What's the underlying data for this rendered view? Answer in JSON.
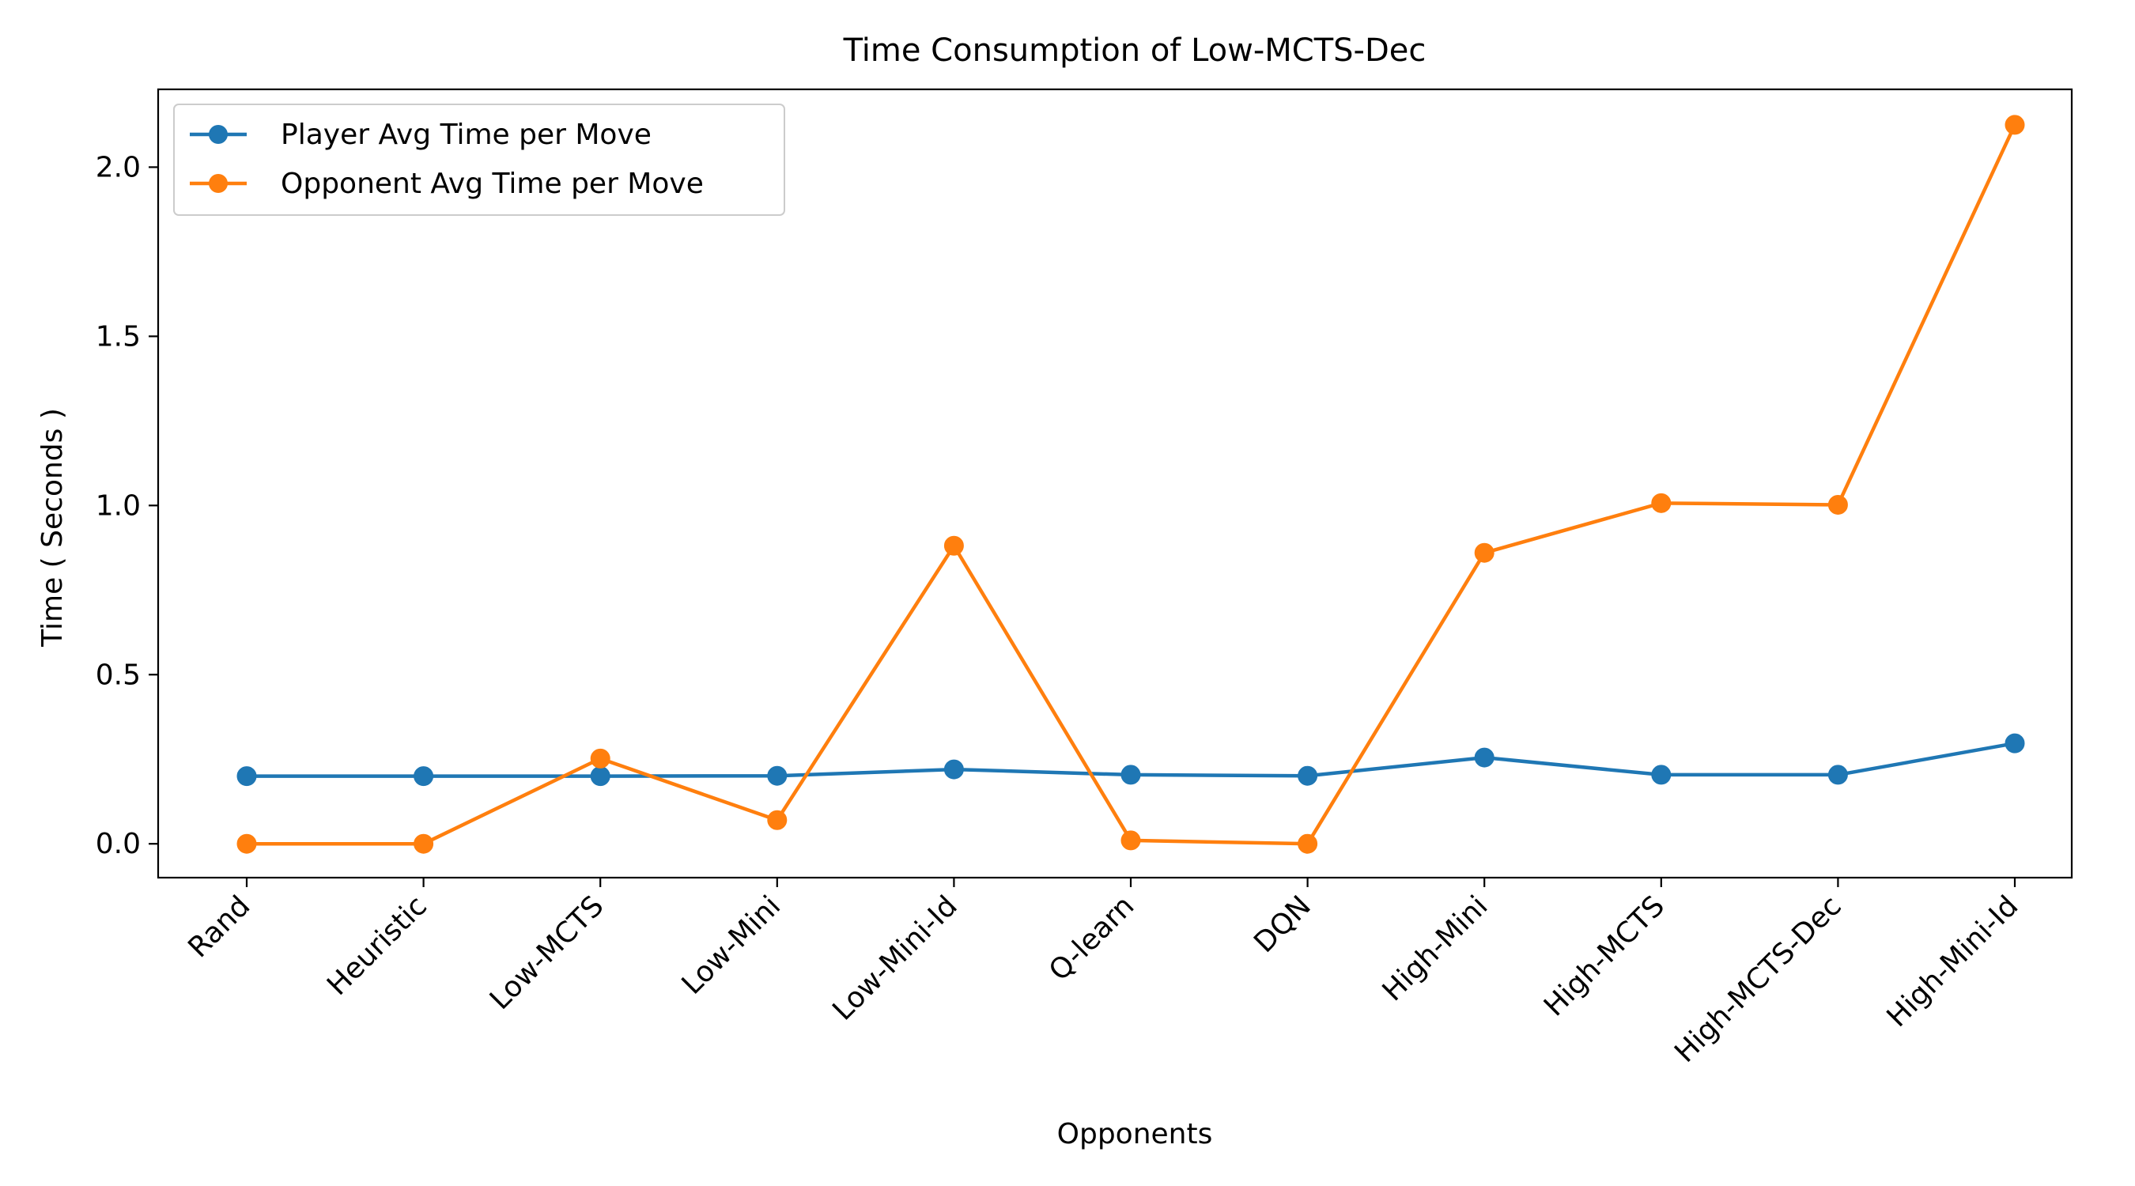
{
  "chart_data": {
    "type": "line",
    "title": "Time Consumption of Low-MCTS-Dec",
    "xlabel": "Opponents",
    "ylabel": "Time ( Seconds )",
    "categories": [
      "Rand",
      "Heuristic",
      "Low-MCTS",
      "Low-Mini",
      "Low-Mini-Id",
      "Q-learn",
      "DQN",
      "High-Mini",
      "High-MCTS",
      "High-MCTS-Dec",
      "High-Mini-Id"
    ],
    "series": [
      {
        "name": "Player Avg Time per Move",
        "color": "#1f77b4",
        "values": [
          0.2,
          0.2,
          0.2,
          0.201,
          0.22,
          0.204,
          0.201,
          0.255,
          0.204,
          0.204,
          0.297
        ]
      },
      {
        "name": "Opponent Avg Time per Move",
        "color": "#ff7f0e",
        "values": [
          0.0,
          0.0,
          0.252,
          0.07,
          0.881,
          0.01,
          0.0,
          0.86,
          1.007,
          1.002,
          2.125
        ]
      }
    ],
    "ylim": [
      -0.1,
      2.23
    ],
    "yticks": [
      "0.0",
      "0.5",
      "1.0",
      "1.5",
      "2.0"
    ],
    "grid": false,
    "legend_position": "top-left"
  }
}
